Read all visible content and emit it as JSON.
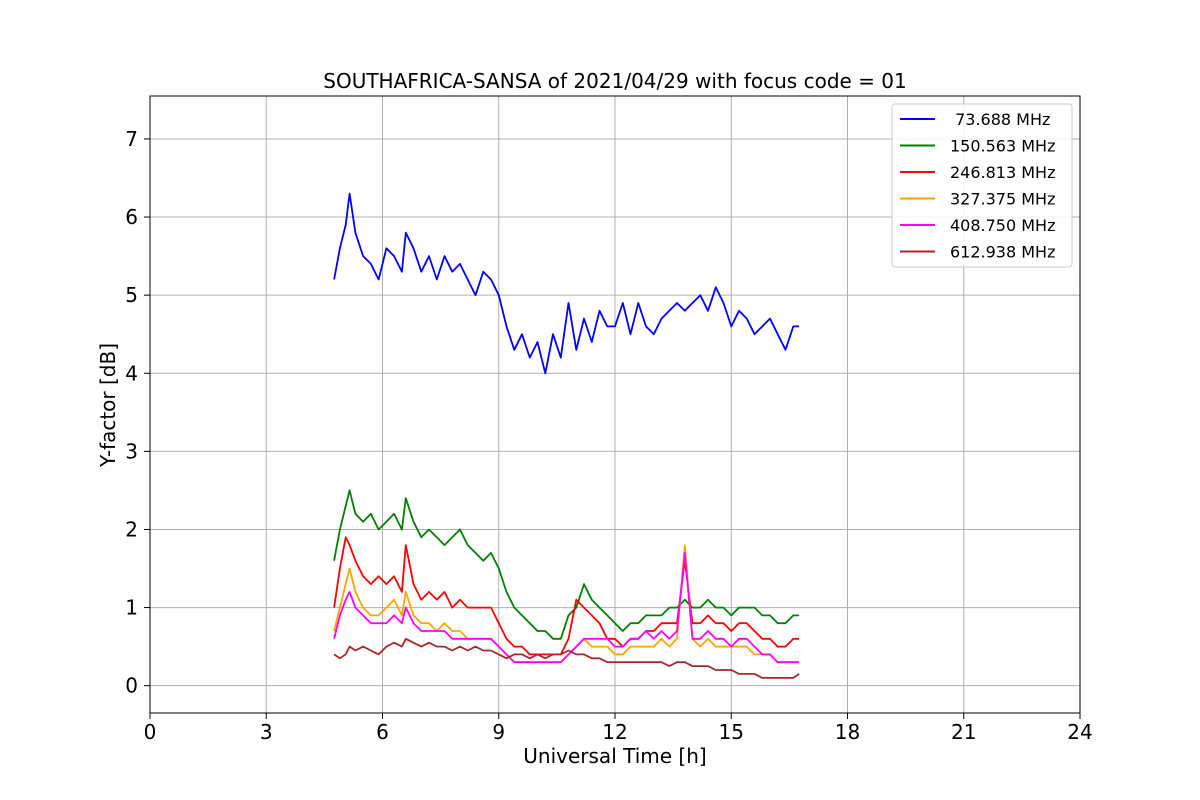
{
  "chart_data": {
    "type": "line",
    "title": "SOUTHAFRICA-SANSA of 2021/04/29 with focus code = 01",
    "xlabel": "Universal Time [h]",
    "ylabel": "Y-factor [dB]",
    "xlim": [
      0,
      24
    ],
    "ylim": [
      -0.35,
      7.55
    ],
    "xticks": [
      0,
      3,
      6,
      9,
      12,
      15,
      18,
      21,
      24
    ],
    "yticks": [
      0,
      1,
      2,
      3,
      4,
      5,
      6,
      7
    ],
    "xtick_labels": [
      "0",
      "3",
      "6",
      "9",
      "12",
      "15",
      "18",
      "21",
      "24"
    ],
    "ytick_labels": [
      "0",
      "1",
      "2",
      "3",
      "4",
      "5",
      "6",
      "7"
    ],
    "grid": true,
    "legend_position": "top-right",
    "series": [
      {
        "name": " 73.688 MHz",
        "color": "#0000ff",
        "x": [
          4.75,
          4.9,
          5.05,
          5.15,
          5.3,
          5.5,
          5.7,
          5.9,
          6.1,
          6.3,
          6.5,
          6.6,
          6.8,
          7.0,
          7.2,
          7.4,
          7.6,
          7.8,
          8.0,
          8.2,
          8.4,
          8.6,
          8.8,
          9.0,
          9.2,
          9.4,
          9.6,
          9.8,
          10.0,
          10.2,
          10.4,
          10.6,
          10.8,
          11.0,
          11.2,
          11.4,
          11.6,
          11.8,
          12.0,
          12.2,
          12.4,
          12.6,
          12.8,
          13.0,
          13.2,
          13.4,
          13.6,
          13.8,
          14.0,
          14.2,
          14.4,
          14.6,
          14.8,
          15.0,
          15.2,
          15.4,
          15.6,
          15.8,
          16.0,
          16.2,
          16.4,
          16.6,
          16.75
        ],
        "values": [
          5.2,
          5.6,
          5.9,
          6.3,
          5.8,
          5.5,
          5.4,
          5.2,
          5.6,
          5.5,
          5.3,
          5.8,
          5.6,
          5.3,
          5.5,
          5.2,
          5.5,
          5.3,
          5.4,
          5.2,
          5.0,
          5.3,
          5.2,
          5.0,
          4.6,
          4.3,
          4.5,
          4.2,
          4.4,
          4.0,
          4.5,
          4.2,
          4.9,
          4.3,
          4.7,
          4.4,
          4.8,
          4.6,
          4.6,
          4.9,
          4.5,
          4.9,
          4.6,
          4.5,
          4.7,
          4.8,
          4.9,
          4.8,
          4.9,
          5.0,
          4.8,
          5.1,
          4.9,
          4.6,
          4.8,
          4.7,
          4.5,
          4.6,
          4.7,
          4.5,
          4.3,
          4.6,
          4.6
        ]
      },
      {
        "name": "150.563 MHz",
        "color": "#008000",
        "x": [
          4.75,
          4.9,
          5.05,
          5.15,
          5.3,
          5.5,
          5.7,
          5.9,
          6.1,
          6.3,
          6.5,
          6.6,
          6.8,
          7.0,
          7.2,
          7.4,
          7.6,
          7.8,
          8.0,
          8.2,
          8.4,
          8.6,
          8.8,
          9.0,
          9.2,
          9.4,
          9.6,
          9.8,
          10.0,
          10.2,
          10.4,
          10.6,
          10.8,
          11.0,
          11.2,
          11.4,
          11.6,
          11.8,
          12.0,
          12.2,
          12.4,
          12.6,
          12.8,
          13.0,
          13.2,
          13.4,
          13.6,
          13.8,
          14.0,
          14.2,
          14.4,
          14.6,
          14.8,
          15.0,
          15.2,
          15.4,
          15.6,
          15.8,
          16.0,
          16.2,
          16.4,
          16.6,
          16.75
        ],
        "values": [
          1.6,
          2.0,
          2.3,
          2.5,
          2.2,
          2.1,
          2.2,
          2.0,
          2.1,
          2.2,
          2.0,
          2.4,
          2.1,
          1.9,
          2.0,
          1.9,
          1.8,
          1.9,
          2.0,
          1.8,
          1.7,
          1.6,
          1.7,
          1.5,
          1.2,
          1.0,
          0.9,
          0.8,
          0.7,
          0.7,
          0.6,
          0.6,
          0.9,
          1.0,
          1.3,
          1.1,
          1.0,
          0.9,
          0.8,
          0.7,
          0.8,
          0.8,
          0.9,
          0.9,
          0.9,
          1.0,
          1.0,
          1.1,
          1.0,
          1.0,
          1.1,
          1.0,
          1.0,
          0.9,
          1.0,
          1.0,
          1.0,
          0.9,
          0.9,
          0.8,
          0.8,
          0.9,
          0.9
        ]
      },
      {
        "name": "246.813 MHz",
        "color": "#ff0000",
        "x": [
          4.75,
          4.9,
          5.05,
          5.15,
          5.3,
          5.5,
          5.7,
          5.9,
          6.1,
          6.3,
          6.5,
          6.6,
          6.8,
          7.0,
          7.2,
          7.4,
          7.6,
          7.8,
          8.0,
          8.2,
          8.4,
          8.6,
          8.8,
          9.0,
          9.2,
          9.4,
          9.6,
          9.8,
          10.0,
          10.2,
          10.4,
          10.6,
          10.8,
          11.0,
          11.2,
          11.4,
          11.6,
          11.8,
          12.0,
          12.2,
          12.4,
          12.6,
          12.8,
          13.0,
          13.2,
          13.4,
          13.6,
          13.8,
          14.0,
          14.2,
          14.4,
          14.6,
          14.8,
          15.0,
          15.2,
          15.4,
          15.6,
          15.8,
          16.0,
          16.2,
          16.4,
          16.6,
          16.75
        ],
        "values": [
          1.0,
          1.5,
          1.9,
          1.8,
          1.6,
          1.4,
          1.3,
          1.4,
          1.3,
          1.4,
          1.2,
          1.8,
          1.3,
          1.1,
          1.2,
          1.1,
          1.2,
          1.0,
          1.1,
          1.0,
          1.0,
          1.0,
          1.0,
          0.8,
          0.6,
          0.5,
          0.5,
          0.4,
          0.4,
          0.4,
          0.4,
          0.4,
          0.6,
          1.1,
          1.0,
          0.9,
          0.8,
          0.6,
          0.6,
          0.5,
          0.6,
          0.6,
          0.7,
          0.7,
          0.8,
          0.8,
          0.8,
          1.6,
          0.8,
          0.8,
          0.9,
          0.8,
          0.8,
          0.7,
          0.8,
          0.8,
          0.7,
          0.6,
          0.6,
          0.5,
          0.5,
          0.6,
          0.6
        ]
      },
      {
        "name": "327.375 MHz",
        "color": "#ffa500",
        "x": [
          4.75,
          4.9,
          5.05,
          5.15,
          5.3,
          5.5,
          5.7,
          5.9,
          6.1,
          6.3,
          6.5,
          6.6,
          6.8,
          7.0,
          7.2,
          7.4,
          7.6,
          7.8,
          8.0,
          8.2,
          8.4,
          8.6,
          8.8,
          9.0,
          9.2,
          9.4,
          9.6,
          9.8,
          10.0,
          10.2,
          10.4,
          10.6,
          10.8,
          11.0,
          11.2,
          11.4,
          11.6,
          11.8,
          12.0,
          12.2,
          12.4,
          12.6,
          12.8,
          13.0,
          13.2,
          13.4,
          13.6,
          13.8,
          14.0,
          14.2,
          14.4,
          14.6,
          14.8,
          15.0,
          15.2,
          15.4,
          15.6,
          15.8,
          16.0,
          16.2,
          16.4,
          16.6,
          16.75
        ],
        "values": [
          0.7,
          1.0,
          1.3,
          1.5,
          1.2,
          1.0,
          0.9,
          0.9,
          1.0,
          1.1,
          0.9,
          1.2,
          0.9,
          0.8,
          0.8,
          0.7,
          0.8,
          0.7,
          0.7,
          0.6,
          0.6,
          0.6,
          0.6,
          0.5,
          0.4,
          0.3,
          0.3,
          0.3,
          0.3,
          0.3,
          0.3,
          0.3,
          0.4,
          0.5,
          0.6,
          0.5,
          0.5,
          0.5,
          0.4,
          0.4,
          0.5,
          0.5,
          0.5,
          0.5,
          0.6,
          0.5,
          0.6,
          1.8,
          0.6,
          0.5,
          0.6,
          0.5,
          0.5,
          0.5,
          0.5,
          0.5,
          0.4,
          0.4,
          0.4,
          0.3,
          0.3,
          0.3,
          0.3
        ]
      },
      {
        "name": "408.750 MHz",
        "color": "#ff00ff",
        "x": [
          4.75,
          4.9,
          5.05,
          5.15,
          5.3,
          5.5,
          5.7,
          5.9,
          6.1,
          6.3,
          6.5,
          6.6,
          6.8,
          7.0,
          7.2,
          7.4,
          7.6,
          7.8,
          8.0,
          8.2,
          8.4,
          8.6,
          8.8,
          9.0,
          9.2,
          9.4,
          9.6,
          9.8,
          10.0,
          10.2,
          10.4,
          10.6,
          10.8,
          11.0,
          11.2,
          11.4,
          11.6,
          11.8,
          12.0,
          12.2,
          12.4,
          12.6,
          12.8,
          13.0,
          13.2,
          13.4,
          13.6,
          13.8,
          14.0,
          14.2,
          14.4,
          14.6,
          14.8,
          15.0,
          15.2,
          15.4,
          15.6,
          15.8,
          16.0,
          16.2,
          16.4,
          16.6,
          16.75
        ],
        "values": [
          0.6,
          0.9,
          1.1,
          1.2,
          1.0,
          0.9,
          0.8,
          0.8,
          0.8,
          0.9,
          0.8,
          1.0,
          0.8,
          0.7,
          0.7,
          0.7,
          0.7,
          0.6,
          0.6,
          0.6,
          0.6,
          0.6,
          0.6,
          0.5,
          0.4,
          0.3,
          0.3,
          0.3,
          0.3,
          0.3,
          0.3,
          0.3,
          0.4,
          0.5,
          0.6,
          0.6,
          0.6,
          0.6,
          0.5,
          0.5,
          0.6,
          0.6,
          0.7,
          0.6,
          0.7,
          0.6,
          0.7,
          1.7,
          0.6,
          0.6,
          0.7,
          0.6,
          0.6,
          0.5,
          0.6,
          0.6,
          0.5,
          0.4,
          0.4,
          0.3,
          0.3,
          0.3,
          0.3
        ]
      },
      {
        "name": "612.938 MHz",
        "color": "#a52a2a",
        "x": [
          4.75,
          4.9,
          5.05,
          5.15,
          5.3,
          5.5,
          5.7,
          5.9,
          6.1,
          6.3,
          6.5,
          6.6,
          6.8,
          7.0,
          7.2,
          7.4,
          7.6,
          7.8,
          8.0,
          8.2,
          8.4,
          8.6,
          8.8,
          9.0,
          9.2,
          9.4,
          9.6,
          9.8,
          10.0,
          10.2,
          10.4,
          10.6,
          10.8,
          11.0,
          11.2,
          11.4,
          11.6,
          11.8,
          12.0,
          12.2,
          12.4,
          12.6,
          12.8,
          13.0,
          13.2,
          13.4,
          13.6,
          13.8,
          14.0,
          14.2,
          14.4,
          14.6,
          14.8,
          15.0,
          15.2,
          15.4,
          15.6,
          15.8,
          16.0,
          16.2,
          16.4,
          16.6,
          16.75
        ],
        "values": [
          0.4,
          0.35,
          0.4,
          0.5,
          0.45,
          0.5,
          0.45,
          0.4,
          0.5,
          0.55,
          0.5,
          0.6,
          0.55,
          0.5,
          0.55,
          0.5,
          0.5,
          0.45,
          0.5,
          0.45,
          0.5,
          0.45,
          0.45,
          0.4,
          0.35,
          0.4,
          0.4,
          0.35,
          0.4,
          0.35,
          0.4,
          0.4,
          0.45,
          0.4,
          0.4,
          0.35,
          0.35,
          0.3,
          0.3,
          0.3,
          0.3,
          0.3,
          0.3,
          0.3,
          0.3,
          0.25,
          0.3,
          0.3,
          0.25,
          0.25,
          0.25,
          0.2,
          0.2,
          0.2,
          0.15,
          0.15,
          0.15,
          0.1,
          0.1,
          0.1,
          0.1,
          0.1,
          0.15
        ]
      }
    ]
  }
}
